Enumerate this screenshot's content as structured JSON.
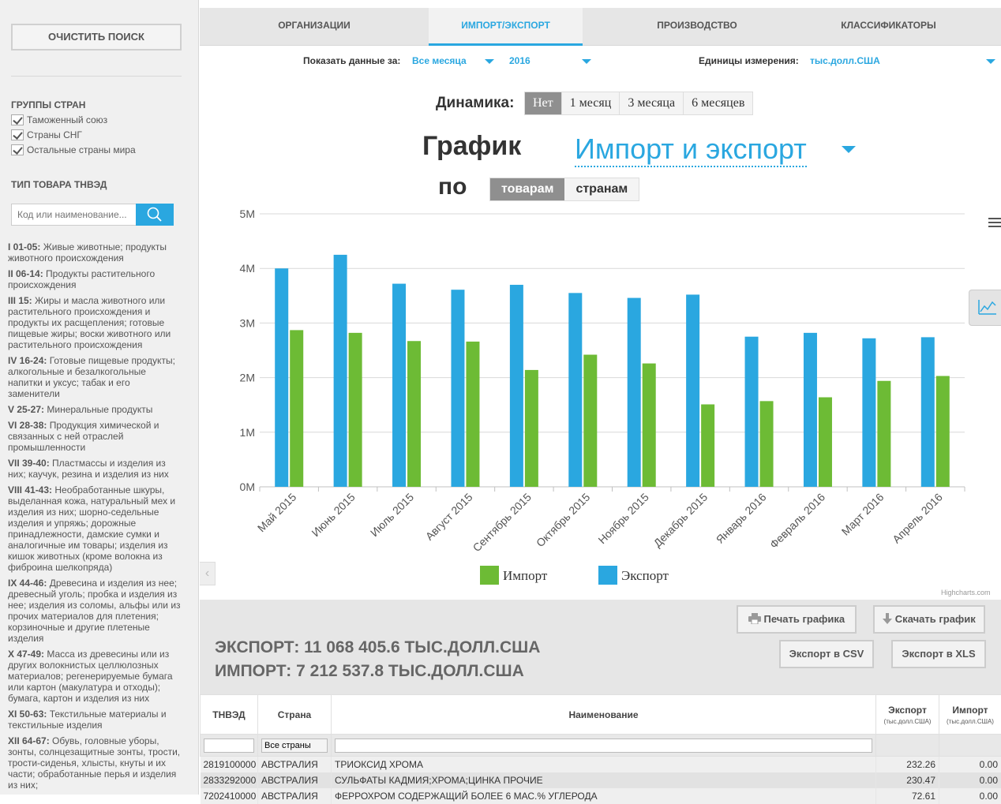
{
  "sidebar": {
    "clear_button": "ОЧИСТИТЬ ПОИСК",
    "country_groups_heading": "ГРУППЫ СТРАН",
    "country_groups": [
      {
        "label": "Таможенный союз",
        "checked": true
      },
      {
        "label": "Страны СНГ",
        "checked": true
      },
      {
        "label": "Остальные страны мира",
        "checked": true
      }
    ],
    "tnved_heading": "ТИП ТОВАРА ТНВЭД",
    "tnved_placeholder": "Код или наименование...",
    "sections": [
      {
        "code": "I 01-05:",
        "text": "Живые животные; продукты животного происхождения"
      },
      {
        "code": "II 06-14:",
        "text": "Продукты растительного происхождения"
      },
      {
        "code": "III 15:",
        "text": "Жиры и масла животного или растительного происхождения и продукты их расщепления; готовые пищевые жиры; воски животного или растительного происхождения"
      },
      {
        "code": "IV 16-24:",
        "text": "Готовые пищевые продукты; алкогольные и безалкогольные напитки и уксус; табак и его заменители"
      },
      {
        "code": "V 25-27:",
        "text": "Минеральные продукты"
      },
      {
        "code": "VI 28-38:",
        "text": "Продукция химической и связанных с ней отраслей промышленности"
      },
      {
        "code": "VII 39-40:",
        "text": "Пластмассы и изделия из них; каучук, резина и изделия из них"
      },
      {
        "code": "VIII 41-43:",
        "text": "Необработанные шкуры, выделанная кожа, натуральный мех и изделия из них; шорно-седельные изделия и упряжь; дорожные принадлежности, дамские сумки и аналогичные им товары; изделия из кишок животных (кроме волокна из фиброина шелкопряда)"
      },
      {
        "code": "IX 44-46:",
        "text": "Древесина и изделия из нее; древесный уголь; пробка и изделия из нее; изделия из соломы, альфы или из прочих материалов для плетения; корзиночные и другие плетеные изделия"
      },
      {
        "code": "X 47-49:",
        "text": "Масса из древесины или из других волокнистых целлюлозных материалов; регенерируемые бумага или картон (макулатура и отходы); бумага, картон и изделия из них"
      },
      {
        "code": "XI 50-63:",
        "text": "Текстильные материалы и текстильные изделия"
      },
      {
        "code": "XII 64-67:",
        "text": "Обувь, головные уборы, зонты, солнцезащитные зонты, трости, трости-сиденья, хлысты, кнуты и их части; обработанные перья и изделия из них;"
      }
    ]
  },
  "tabs": [
    {
      "label": "ОРГАНИЗАЦИИ",
      "active": false
    },
    {
      "label": "ИМПОРТ/ЭКСПОРТ",
      "active": true
    },
    {
      "label": "ПРОИЗВОДСТВО",
      "active": false
    },
    {
      "label": "КЛАССИФИКАТОРЫ",
      "active": false
    }
  ],
  "filters": {
    "show_label": "Показать данные за:",
    "month_value": "Все месяца",
    "year_value": "2016",
    "units_label": "Единицы измерения:",
    "units_value": "тыс.долл.США"
  },
  "dynamics": {
    "label": "Динамика:",
    "options": [
      {
        "label": "Нет",
        "active": true
      },
      {
        "label": "1 месяц",
        "active": false
      },
      {
        "label": "3 месяца",
        "active": false
      },
      {
        "label": "6 месяцев",
        "active": false
      }
    ]
  },
  "graph_header": {
    "graph_word": "График",
    "selected": "Импорт и экспорт",
    "po_word": "по",
    "by_options": [
      {
        "label": "товарам",
        "active": true
      },
      {
        "label": "странам",
        "active": false
      }
    ]
  },
  "colors": {
    "export": "#2aa7e0",
    "import": "#6dbb35",
    "accent": "#2aa7e0"
  },
  "chart_data": {
    "type": "bar",
    "categories": [
      "Май 2015",
      "Июнь 2015",
      "Июль 2015",
      "Август 2015",
      "Сентябрь 2015",
      "Октябрь 2015",
      "Ноябрь 2015",
      "Декабрь 2015",
      "Январь 2016",
      "Февраль 2016",
      "Март 2016",
      "Апрель 2016"
    ],
    "series": [
      {
        "name": "Экспорт",
        "values": [
          4000000,
          4250000,
          3720000,
          3610000,
          3700000,
          3550000,
          3460000,
          3520000,
          2750000,
          2820000,
          2720000,
          2740000
        ]
      },
      {
        "name": "Импорт",
        "values": [
          2870000,
          2820000,
          2670000,
          2660000,
          2140000,
          2420000,
          2260000,
          1510000,
          1570000,
          1640000,
          1940000,
          2030000
        ]
      }
    ],
    "y_ticks": [
      "0M",
      "1M",
      "2M",
      "3M",
      "4M",
      "5M"
    ],
    "ylim": [
      0,
      5000000
    ],
    "legend": [
      "Импорт",
      "Экспорт"
    ],
    "legend_placement": "bottom-center",
    "grid": true,
    "credits": "Highcharts.com"
  },
  "toolbar": {
    "print_label": "Печать графика",
    "download_label": "Скачать график",
    "csv_label": "Экспорт в CSV",
    "xls_label": "Экспорт в XLS"
  },
  "totals": {
    "export_line": "ЭКСПОРТ: 11 068 405.6 ТЫС.ДОЛЛ.США",
    "import_line": "ИМПОРТ: 7 212 537.8 ТЫС.ДОЛЛ.США"
  },
  "table": {
    "headers": {
      "tnved": "ТНВЭД",
      "country": "Страна",
      "name": "Наименование",
      "export": "Экспорт",
      "import": "Импорт",
      "unit": "(тыс.долл.США)"
    },
    "country_filter": "Все страны",
    "rows": [
      {
        "tnved": "2819100000",
        "country": "АВСТРАЛИЯ",
        "name": "ТРИОКСИД ХРОМА",
        "export": "232.26",
        "import": "0.00"
      },
      {
        "tnved": "2833292000",
        "country": "АВСТРАЛИЯ",
        "name": "СУЛЬФАТЫ КАДМИЯ;ХРОМА;ЦИНКА ПРОЧИЕ",
        "export": "230.47",
        "import": "0.00"
      },
      {
        "tnved": "7202410000",
        "country": "АВСТРАЛИЯ",
        "name": "ФЕРРОХРОМ СОДЕРЖАЩИЙ БОЛЕЕ 6 МАС.% УГЛЕРОДА",
        "export": "72.61",
        "import": "0.00"
      }
    ]
  }
}
